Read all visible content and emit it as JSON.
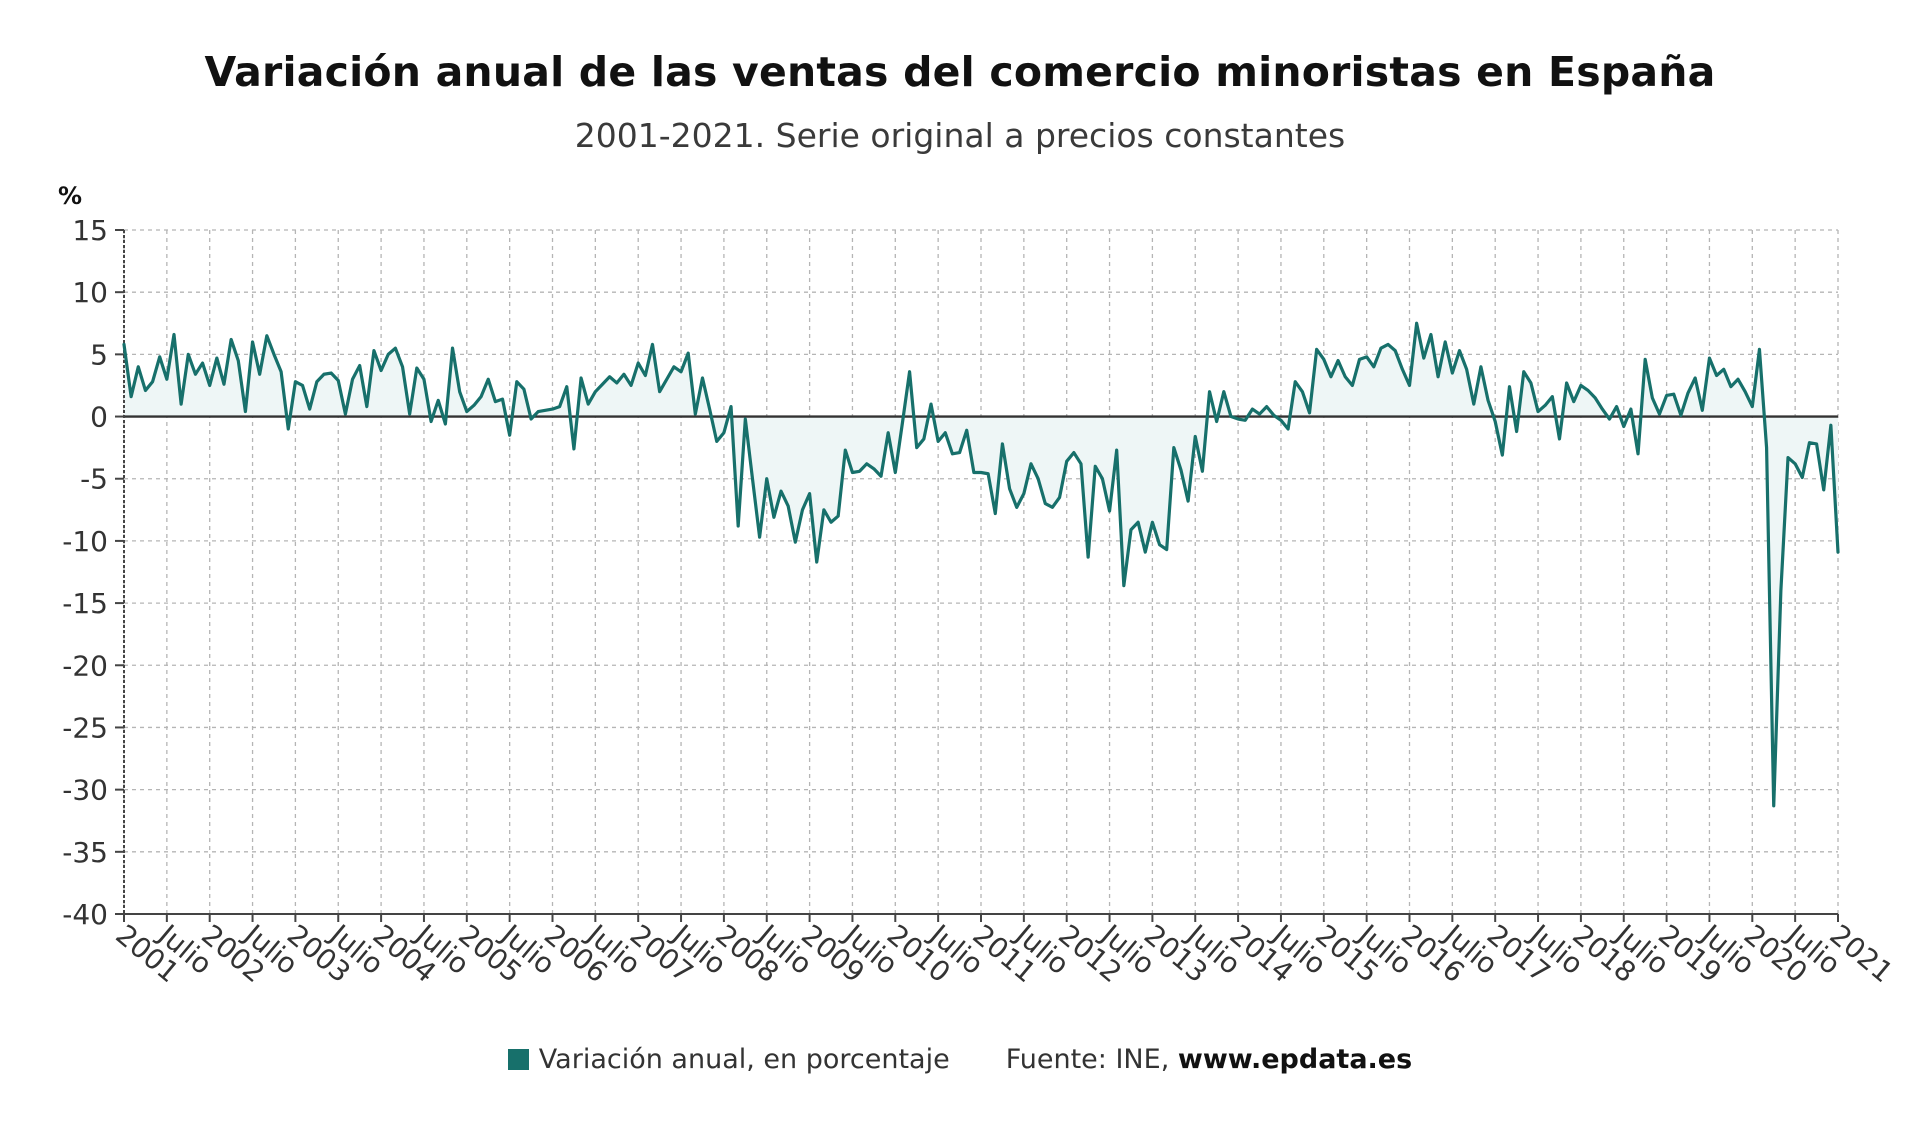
{
  "header": {
    "title": "Variación anual de las ventas del comercio minoristas en España",
    "subtitle": "2001-2021. Serie original a precios constantes"
  },
  "legend": {
    "series_label": "Variación anual, en porcentaje",
    "source_prefix": "Fuente: INE,",
    "source_site": "www.epdata.es"
  },
  "colors": {
    "line": "#17706b",
    "fill": "#eef6f6",
    "grid": "#b5b5b5",
    "zero": "#333333"
  },
  "chart_data": {
    "type": "line",
    "ylabel": "%",
    "ylim": [
      -40,
      15
    ],
    "yticks": [
      15,
      10,
      5,
      0,
      -5,
      -10,
      -15,
      -20,
      -25,
      -30,
      -35,
      -40
    ],
    "x_start": "2001-01",
    "x_end": "2021-01",
    "x_tick_labels": [
      "2001",
      "Julio",
      "2002",
      "Julio",
      "2003",
      "Julio",
      "2004",
      "Julio",
      "2005",
      "Julio",
      "2006",
      "Julio",
      "2007",
      "Julio",
      "2008",
      "Julio",
      "2009",
      "Julio",
      "2010",
      "Julio",
      "2011",
      "Julio",
      "2012",
      "Julio",
      "2013",
      "Julio",
      "2014",
      "Julio",
      "2015",
      "Julio",
      "2016",
      "Julio",
      "2017",
      "Julio",
      "2018",
      "Julio",
      "2019",
      "Julio",
      "2020",
      "Julio",
      "2021"
    ],
    "grid": true,
    "legend_position": "bottom",
    "series": [
      {
        "name": "Variación anual, en porcentaje",
        "values": [
          5.8,
          1.6,
          4.0,
          2.1,
          2.8,
          4.8,
          3.0,
          6.6,
          1.0,
          5.0,
          3.4,
          4.3,
          2.5,
          4.7,
          2.6,
          6.2,
          4.5,
          0.4,
          6.0,
          3.4,
          6.5,
          5.0,
          3.6,
          -1.0,
          2.8,
          2.5,
          0.6,
          2.8,
          3.4,
          3.5,
          2.9,
          0.2,
          3.0,
          4.1,
          0.8,
          5.3,
          3.7,
          5.0,
          5.5,
          4.0,
          0.2,
          3.9,
          3.0,
          -0.4,
          1.3,
          -0.6,
          5.5,
          2.0,
          0.4,
          0.9,
          1.6,
          3.0,
          1.2,
          1.4,
          -1.5,
          2.8,
          2.2,
          -0.2,
          0.4,
          0.5,
          0.6,
          0.8,
          2.4,
          -2.6,
          3.1,
          1.0,
          2.0,
          2.6,
          3.2,
          2.7,
          3.4,
          2.5,
          4.3,
          3.3,
          5.8,
          2.0,
          3.0,
          4.0,
          3.6,
          5.1,
          0.2,
          3.1,
          0.6,
          -2.0,
          -1.3,
          0.8,
          -8.8,
          -0.2,
          -5.0,
          -9.7,
          -5.0,
          -8.1,
          -6.0,
          -7.2,
          -10.1,
          -7.5,
          -6.2,
          -11.7,
          -7.5,
          -8.5,
          -8.0,
          -2.7,
          -4.5,
          -4.4,
          -3.8,
          -4.2,
          -4.8,
          -1.3,
          -4.5,
          -0.5,
          3.6,
          -2.5,
          -1.8,
          1.0,
          -2.0,
          -1.3,
          -3.0,
          -2.9,
          -1.1,
          -4.5,
          -4.5,
          -4.6,
          -7.8,
          -2.2,
          -5.8,
          -7.3,
          -6.2,
          -3.8,
          -5.0,
          -7.0,
          -7.3,
          -6.5,
          -3.6,
          -2.9,
          -3.8,
          -11.3,
          -4.0,
          -5.0,
          -7.6,
          -2.7,
          -13.6,
          -9.1,
          -8.5,
          -10.9,
          -8.5,
          -10.3,
          -10.7,
          -2.5,
          -4.3,
          -6.8,
          -1.6,
          -4.4,
          2.0,
          -0.4,
          2.0,
          0.0,
          -0.2,
          -0.3,
          0.6,
          0.2,
          0.8,
          0.1,
          -0.3,
          -1.0,
          2.8,
          2.0,
          0.3,
          5.4,
          4.6,
          3.2,
          4.5,
          3.2,
          2.5,
          4.6,
          4.8,
          4.0,
          5.5,
          5.8,
          5.3,
          3.8,
          2.5,
          7.5,
          4.7,
          6.6,
          3.2,
          6.0,
          3.5,
          5.3,
          3.8,
          1.0,
          4.0,
          1.3,
          -0.4,
          -3.1,
          2.4,
          -1.2,
          3.6,
          2.7,
          0.4,
          0.9,
          1.6,
          -1.8,
          2.7,
          1.2,
          2.5,
          2.1,
          1.5,
          0.6,
          -0.2,
          0.8,
          -0.8,
          0.6,
          -3.0,
          4.6,
          1.5,
          0.2,
          1.7,
          1.8,
          0.1,
          1.9,
          3.1,
          0.5,
          4.7,
          3.3,
          3.8,
          2.4,
          3.0,
          2.0,
          0.8,
          5.4,
          -2.5,
          -31.3,
          -14.0,
          -3.3,
          -3.8,
          -4.9,
          -2.1,
          -2.2,
          -5.9,
          -0.7,
          -10.9
        ]
      }
    ]
  }
}
